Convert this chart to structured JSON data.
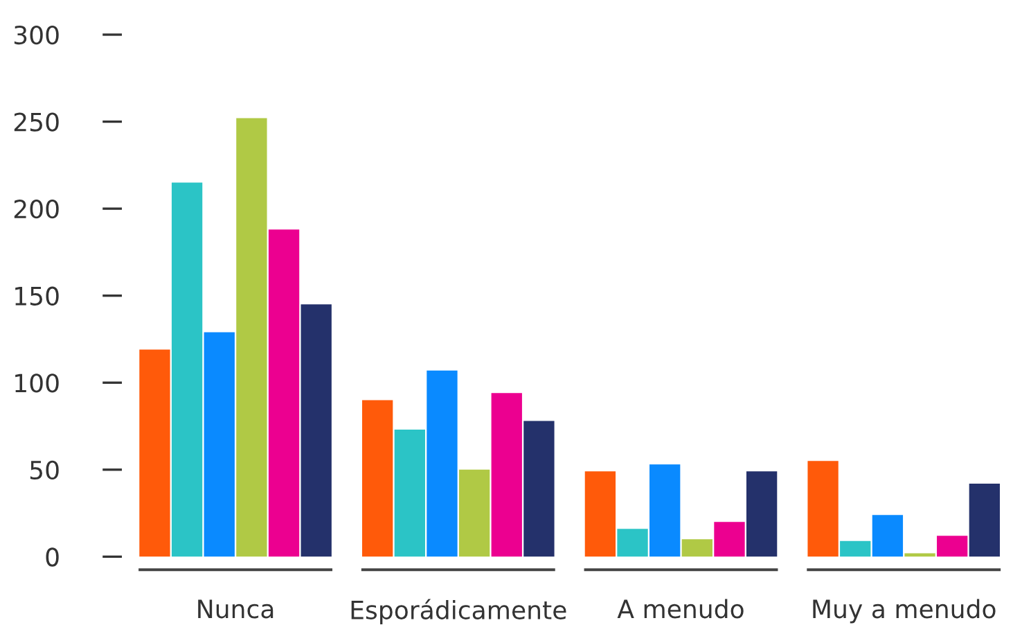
{
  "chart_data": {
    "type": "bar",
    "categories": [
      "Nunca",
      "Esporádicamente",
      "A menudo",
      "Muy a menudo"
    ],
    "series": [
      {
        "color": "#ff5a0a",
        "values": [
          119,
          90,
          49,
          55
        ]
      },
      {
        "color": "#2bc4c6",
        "values": [
          215,
          73,
          16,
          9
        ]
      },
      {
        "color": "#0a8aff",
        "values": [
          129,
          107,
          53,
          24
        ]
      },
      {
        "color": "#b0c945",
        "values": [
          252,
          50,
          10,
          2
        ]
      },
      {
        "color": "#ec0090",
        "values": [
          188,
          94,
          20,
          12
        ]
      },
      {
        "color": "#24316b",
        "values": [
          145,
          78,
          49,
          42
        ]
      }
    ],
    "ylim": [
      0,
      300
    ],
    "yticks": [
      0,
      50,
      100,
      150,
      200,
      250,
      300
    ],
    "grid": false,
    "legend": false
  }
}
